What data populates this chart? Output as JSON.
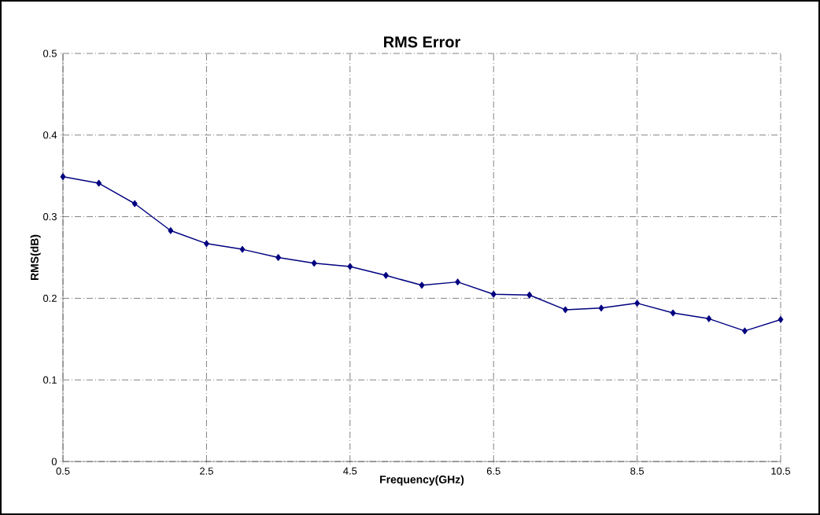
{
  "chart_data": {
    "type": "line",
    "title": "RMS Error",
    "xlabel": "Frequency(GHz)",
    "ylabel": "RMS(dB)",
    "x": [
      0.5,
      1.0,
      1.5,
      2.0,
      2.5,
      3.0,
      3.5,
      4.0,
      4.5,
      5.0,
      5.5,
      6.0,
      6.5,
      7.0,
      7.5,
      8.0,
      8.5,
      9.0,
      9.5,
      10.0,
      10.5
    ],
    "series": [
      {
        "color": "#000080",
        "values": [
          0.349,
          0.341,
          0.316,
          0.283,
          0.267,
          0.26,
          0.25,
          0.243,
          0.239,
          0.228,
          0.216,
          0.22,
          0.205,
          0.204,
          0.186,
          0.188,
          0.194,
          0.182,
          0.175,
          0.16,
          0.174
        ]
      }
    ],
    "xlim": [
      0.5,
      10.5
    ],
    "ylim": [
      0,
      0.5
    ],
    "xticks": [
      0.5,
      2.5,
      4.5,
      6.5,
      8.5,
      10.5
    ],
    "yticks": [
      0,
      0.1,
      0.2,
      0.3,
      0.4,
      0.5
    ],
    "grid": true,
    "marker": "diamond",
    "line_style": "solid"
  }
}
